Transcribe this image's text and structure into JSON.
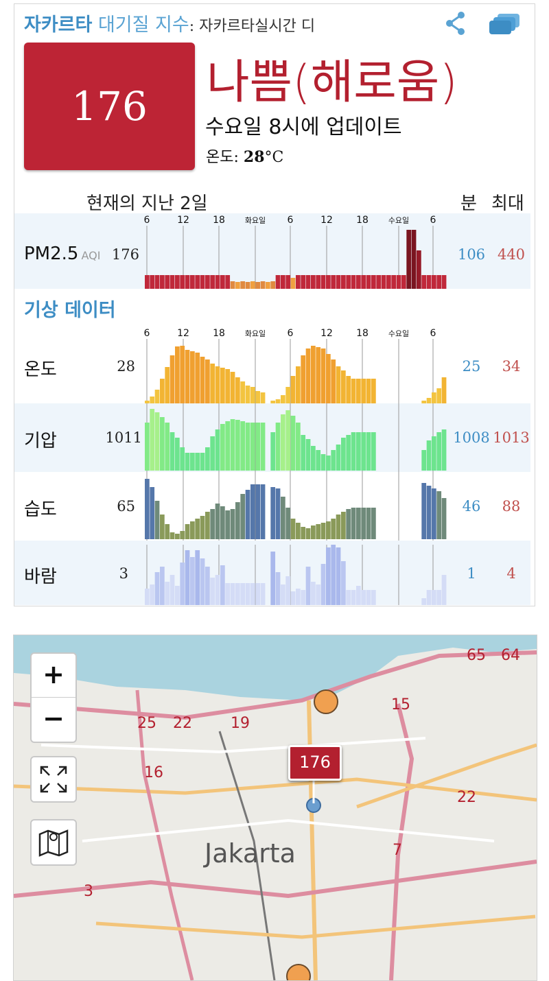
{
  "header": {
    "city": "자카르타",
    "title_rest": " 대기질 지수",
    "colon": ":",
    "subtitle": " 자카르타실시간 디"
  },
  "aqi": {
    "value": "176",
    "status": "나쁨(해로움)",
    "updated": "수요일 8시에 업데이트",
    "temp_label": "온도: ",
    "temp_value": "28",
    "temp_unit": "°C",
    "box_color": "#bd2435"
  },
  "table_header": {
    "past": "현재의 지난 2일",
    "min": "분",
    "max": "최대"
  },
  "time_axis": [
    "6",
    "12",
    "18",
    "화요일",
    "6",
    "12",
    "18",
    "수요일",
    "6"
  ],
  "pm25": {
    "label": "PM2.5",
    "unit": "AQI",
    "current": "176",
    "min": "106",
    "max": "440"
  },
  "weather_title": "기상 데이터",
  "weather": [
    {
      "label": "온도",
      "current": "28",
      "min": "25",
      "max": "34"
    },
    {
      "label": "기압",
      "current": "1011",
      "min": "1008",
      "max": "1013"
    },
    {
      "label": "습도",
      "current": "65",
      "min": "46",
      "max": "88"
    },
    {
      "label": "바람",
      "current": "3",
      "min": "1",
      "max": "4"
    }
  ],
  "map": {
    "zoom_in": "+",
    "zoom_out": "−",
    "fullscreen_icon": "fullscreen-icon",
    "layers_icon": "map-icon",
    "city": "Jakarta",
    "marker_value": "176",
    "road_numbers": [
      "65",
      "64",
      "15",
      "25",
      "22",
      "19",
      "16",
      "22",
      "7",
      "3"
    ]
  }
}
